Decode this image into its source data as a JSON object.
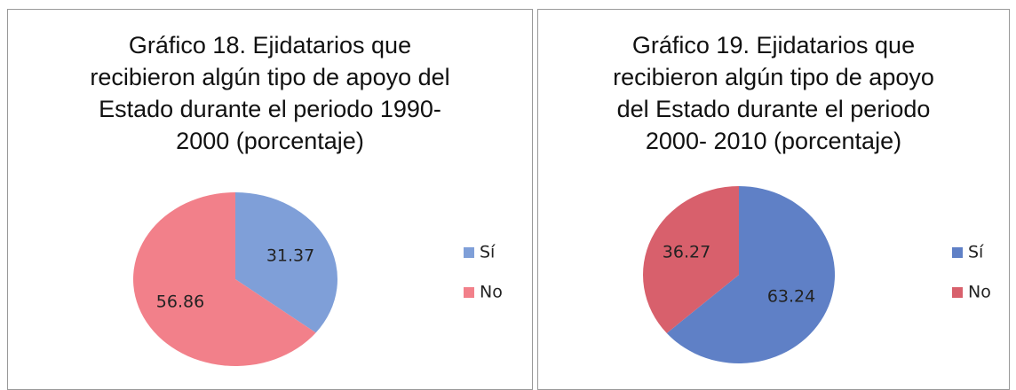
{
  "chart_data": [
    {
      "type": "pie",
      "title": "Gráfico 18. Ejidatarios que recibieron algún tipo de apoyo del Estado durante el periodo 1990- 2000 (porcentaje)",
      "categories": [
        "Sí",
        "No"
      ],
      "values": [
        31.37,
        56.86
      ],
      "colors": [
        "#7f9fd8",
        "#f2808a"
      ]
    },
    {
      "type": "pie",
      "title": "Gráfico 19. Ejidatarios que recibieron algún tipo de apoyo del Estado durante el periodo 2000- 2010 (porcentaje)",
      "categories": [
        "Sí",
        "No"
      ],
      "values": [
        63.24,
        36.27
      ],
      "colors": [
        "#5f80c6",
        "#d8606c"
      ]
    }
  ]
}
